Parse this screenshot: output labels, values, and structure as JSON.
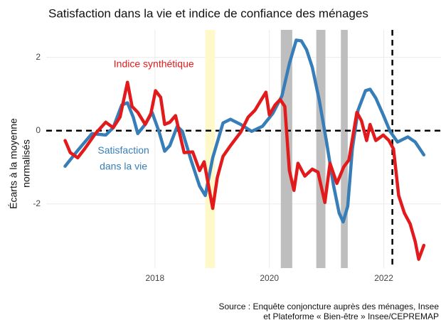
{
  "chart_data": {
    "type": "line",
    "title": "Satisfaction dans la vie et indice de confiance des ménages",
    "ylabel": [
      "Écarts à la moyenne",
      "normalisés"
    ],
    "source": [
      "Source : Enquête conjoncture auprès des ménages, Insee",
      "et Plateforme « Bien-être » Insee/CEPREMAP"
    ],
    "xlim": [
      2016.1,
      2023.0
    ],
    "ylim": [
      -3.75,
      2.75
    ],
    "xticks": [
      2018,
      2020,
      2022
    ],
    "yticks": [
      -2,
      0,
      2
    ],
    "grid": true,
    "hline": 0,
    "vline": 2022.15,
    "bands": [
      {
        "xmin": 2018.88,
        "xmax": 2019.05,
        "color": "#fff8c8"
      },
      {
        "xmin": 2020.2,
        "xmax": 2020.4,
        "color": "#bebebe"
      },
      {
        "xmin": 2020.82,
        "xmax": 2020.98,
        "color": "#bebebe"
      },
      {
        "xmin": 2021.25,
        "xmax": 2021.37,
        "color": "#bebebe"
      }
    ],
    "annotations": [
      {
        "text": "Indice synthétique",
        "x": 2017.98,
        "y": 1.8,
        "color": "#e31a1c"
      },
      {
        "text": "Satisfaction",
        "x": 2017.45,
        "y": -0.55,
        "color": "#377eb8"
      },
      {
        "text": "dans la vie",
        "x": 2017.45,
        "y": -0.99,
        "color": "#377eb8"
      }
    ],
    "series": [
      {
        "name": "Satisfaction dans la vie",
        "color": "#377eb8",
        "x": [
          2016.43,
          2016.65,
          2016.9,
          2017.14,
          2017.27,
          2017.42,
          2017.52,
          2017.62,
          2017.7,
          2017.83,
          2017.95,
          2018.07,
          2018.17,
          2018.26,
          2018.39,
          2018.48,
          2018.63,
          2018.78,
          2018.88,
          2019.01,
          2019.19,
          2019.32,
          2019.5,
          2019.69,
          2019.88,
          2020.06,
          2020.22,
          2020.35,
          2020.47,
          2020.56,
          2020.65,
          2020.75,
          2020.87,
          2021.0,
          2021.12,
          2021.22,
          2021.29,
          2021.37,
          2021.45,
          2021.55,
          2021.68,
          2021.76,
          2021.86,
          2021.99,
          2022.11,
          2022.24,
          2022.42,
          2022.55,
          2022.7
        ],
        "values": [
          -0.97,
          -0.54,
          -0.08,
          -0.12,
          0.08,
          0.7,
          0.76,
          0.37,
          -0.08,
          0.17,
          0.5,
          -0.02,
          -0.56,
          -0.41,
          0.12,
          -0.02,
          -0.8,
          -1.51,
          -1.77,
          -0.74,
          0.21,
          0.31,
          0.17,
          -0.02,
          0.12,
          0.47,
          0.95,
          1.83,
          2.47,
          2.45,
          2.21,
          1.73,
          0.85,
          -0.31,
          -1.48,
          -2.25,
          -2.49,
          -2.06,
          -0.5,
          0.56,
          1.09,
          1.13,
          0.89,
          0.43,
          -0.02,
          -0.31,
          -0.17,
          -0.31,
          -0.66
        ]
      },
      {
        "name": "Indice synthétique",
        "color": "#e31a1c",
        "x": [
          2016.43,
          2016.52,
          2016.65,
          2016.77,
          2016.96,
          2017.14,
          2017.27,
          2017.39,
          2017.52,
          2017.6,
          2017.7,
          2017.83,
          2017.93,
          2018.01,
          2018.1,
          2018.17,
          2018.26,
          2018.36,
          2018.51,
          2018.66,
          2018.78,
          2018.86,
          2019.01,
          2019.09,
          2019.19,
          2019.32,
          2019.5,
          2019.63,
          2019.75,
          2019.85,
          2019.94,
          2020.0,
          2020.1,
          2020.19,
          2020.27,
          2020.35,
          2020.43,
          2020.5,
          2020.62,
          2020.75,
          2020.85,
          2020.97,
          2021.06,
          2021.18,
          2021.3,
          2021.39,
          2021.53,
          2021.61,
          2021.7,
          2021.76,
          2021.86,
          2021.99,
          2022.09,
          2022.17,
          2022.26,
          2022.36,
          2022.46,
          2022.55,
          2022.61,
          2022.7
        ],
        "values": [
          -0.27,
          -0.6,
          -0.74,
          -0.5,
          -0.08,
          0.23,
          0.08,
          0.37,
          1.32,
          0.66,
          0.5,
          0.17,
          0.47,
          1.09,
          0.91,
          0.17,
          0.23,
          0.41,
          -0.6,
          -0.58,
          -1.09,
          -0.85,
          -2.12,
          -1.28,
          -0.7,
          -0.41,
          -0.04,
          0.37,
          0.56,
          0.82,
          1.05,
          0.43,
          0.7,
          0.85,
          0.66,
          -1.09,
          -1.63,
          -0.89,
          -1.24,
          -1.05,
          -1.13,
          -1.96,
          -0.89,
          -1.44,
          -0.99,
          -0.8,
          0.5,
          0.27,
          -0.27,
          0.17,
          -0.27,
          -0.12,
          -0.27,
          -0.5,
          -1.77,
          -2.25,
          -2.54,
          -3.03,
          -3.51,
          -3.13
        ]
      }
    ]
  }
}
